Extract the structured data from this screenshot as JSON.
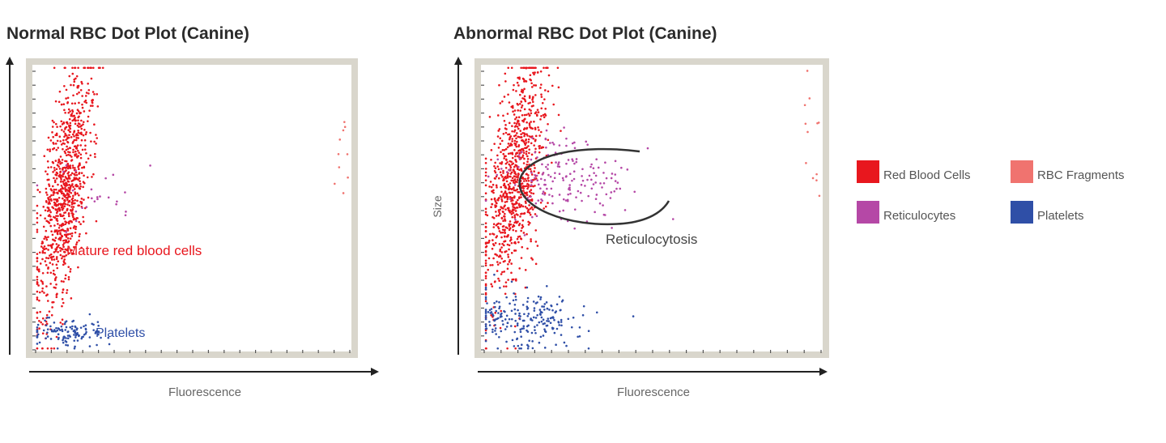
{
  "titles": {
    "left": "Normal RBC Dot Plot (Canine)",
    "right": "Abnormal RBC Dot Plot (Canine)"
  },
  "colors": {
    "red_blood_cells": "#e8171e",
    "rbc_fragments": "#f0736f",
    "reticulocytes": "#b548a6",
    "platelets": "#2f4fa7",
    "frame": "#d9d6cc",
    "axis": "#222222",
    "gate": "#333333"
  },
  "legend": [
    {
      "label": "Red Blood Cells",
      "color": "#e8171e"
    },
    {
      "label": "RBC Fragments",
      "color": "#f0736f"
    },
    {
      "label": "Reticulocytes",
      "color": "#b548a6"
    },
    {
      "label": "Platelets",
      "color": "#2f4fa7"
    }
  ],
  "chart_data": [
    {
      "type": "scatter",
      "title": "Normal RBC Dot Plot (Canine)",
      "xlabel": "Fluorescence",
      "ylabel": "",
      "grid": false,
      "annotations": [
        {
          "text": "Mature red blood cells",
          "color": "#e8171e"
        },
        {
          "text": "Platelets",
          "color": "#2f4fa7"
        }
      ],
      "series": [
        {
          "name": "Red Blood Cells",
          "cluster": {
            "center": [
              0.09,
              0.55
            ],
            "spread": [
              0.035,
              0.22
            ],
            "trend": "diagonal",
            "count": 900
          }
        },
        {
          "name": "Reticulocytes",
          "cluster": {
            "center": [
              0.2,
              0.55
            ],
            "spread": [
              0.08,
              0.06
            ],
            "count": 25
          }
        },
        {
          "name": "Platelets",
          "cluster": {
            "center": [
              0.1,
              0.06
            ],
            "spread": [
              0.06,
              0.025
            ],
            "count": 120
          }
        },
        {
          "name": "RBC Fragments",
          "cluster": {
            "center": [
              0.98,
              0.75
            ],
            "spread": [
              0.01,
              0.12
            ],
            "count": 10
          }
        }
      ],
      "xlim": [
        0,
        1
      ],
      "ylim": [
        0,
        1
      ]
    },
    {
      "type": "scatter",
      "title": "Abnormal RBC Dot Plot (Canine)",
      "xlabel": "Fluorescence",
      "ylabel": "Size",
      "grid": false,
      "annotations": [
        {
          "text": "Reticulocytosis",
          "color": "#444444"
        }
      ],
      "series": [
        {
          "name": "Red Blood Cells",
          "cluster": {
            "center": [
              0.09,
              0.6
            ],
            "spread": [
              0.04,
              0.2
            ],
            "trend": "diagonal",
            "count": 900
          }
        },
        {
          "name": "Reticulocytes",
          "cluster": {
            "center": [
              0.24,
              0.6
            ],
            "spread": [
              0.09,
              0.07
            ],
            "count": 180
          }
        },
        {
          "name": "Platelets",
          "cluster": {
            "center": [
              0.12,
              0.1
            ],
            "spread": [
              0.09,
              0.05
            ],
            "count": 220
          }
        },
        {
          "name": "RBC Fragments",
          "cluster": {
            "center": [
              0.97,
              0.78
            ],
            "spread": [
              0.015,
              0.12
            ],
            "count": 12
          }
        }
      ],
      "xlim": [
        0,
        1
      ],
      "ylim": [
        0,
        1
      ]
    }
  ]
}
